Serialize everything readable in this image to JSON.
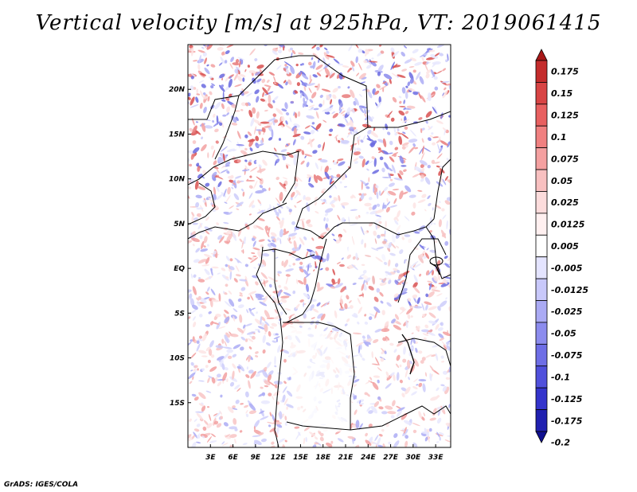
{
  "title": "Vertical velocity [m/s] at 925hPa, VT: 2019061415",
  "credit": "GrADS: IGES/COLA",
  "map": {
    "variable": "vertical velocity",
    "units": "m/s",
    "level": "925hPa",
    "valid_time": "2019061415",
    "lon_range": [
      0,
      35
    ],
    "lat_range": [
      -20,
      25
    ],
    "lat_labels": [
      {
        "lat": 20,
        "text": "20N"
      },
      {
        "lat": 15,
        "text": "15N"
      },
      {
        "lat": 10,
        "text": "10N"
      },
      {
        "lat": 5,
        "text": "5N"
      },
      {
        "lat": 0,
        "text": "EQ"
      },
      {
        "lat": -5,
        "text": "5S"
      },
      {
        "lat": -10,
        "text": "10S"
      },
      {
        "lat": -15,
        "text": "15S"
      }
    ],
    "lon_labels": [
      {
        "lon": 3,
        "text": "3E"
      },
      {
        "lon": 6,
        "text": "6E"
      },
      {
        "lon": 9,
        "text": "9E"
      },
      {
        "lon": 12,
        "text": "12E"
      },
      {
        "lon": 15,
        "text": "15E"
      },
      {
        "lon": 18,
        "text": "18E"
      },
      {
        "lon": 21,
        "text": "21E"
      },
      {
        "lon": 24,
        "text": "24E"
      },
      {
        "lon": 27,
        "text": "27E"
      },
      {
        "lon": 30,
        "text": "30E"
      },
      {
        "lon": 33,
        "text": "33E"
      }
    ]
  },
  "colorbar": {
    "labels": [
      "0.175",
      "0.15",
      "0.125",
      "0.1",
      "0.075",
      "0.05",
      "0.025",
      "0.0125",
      "0.005",
      "-0.005",
      "-0.0125",
      "-0.025",
      "-0.05",
      "-0.075",
      "-0.1",
      "-0.125",
      "-0.175",
      "-0.2"
    ],
    "colors": [
      "#a81818",
      "#c42c2c",
      "#d84444",
      "#e86060",
      "#f08080",
      "#f4a0a0",
      "#f8c0c0",
      "#fcdcdc",
      "#fff0f0",
      "#ffffff",
      "#e4e4ff",
      "#c8c8fa",
      "#aaaaf4",
      "#8c8cee",
      "#6e6ee6",
      "#5050dc",
      "#3434cc",
      "#2020b0",
      "#101090"
    ]
  }
}
